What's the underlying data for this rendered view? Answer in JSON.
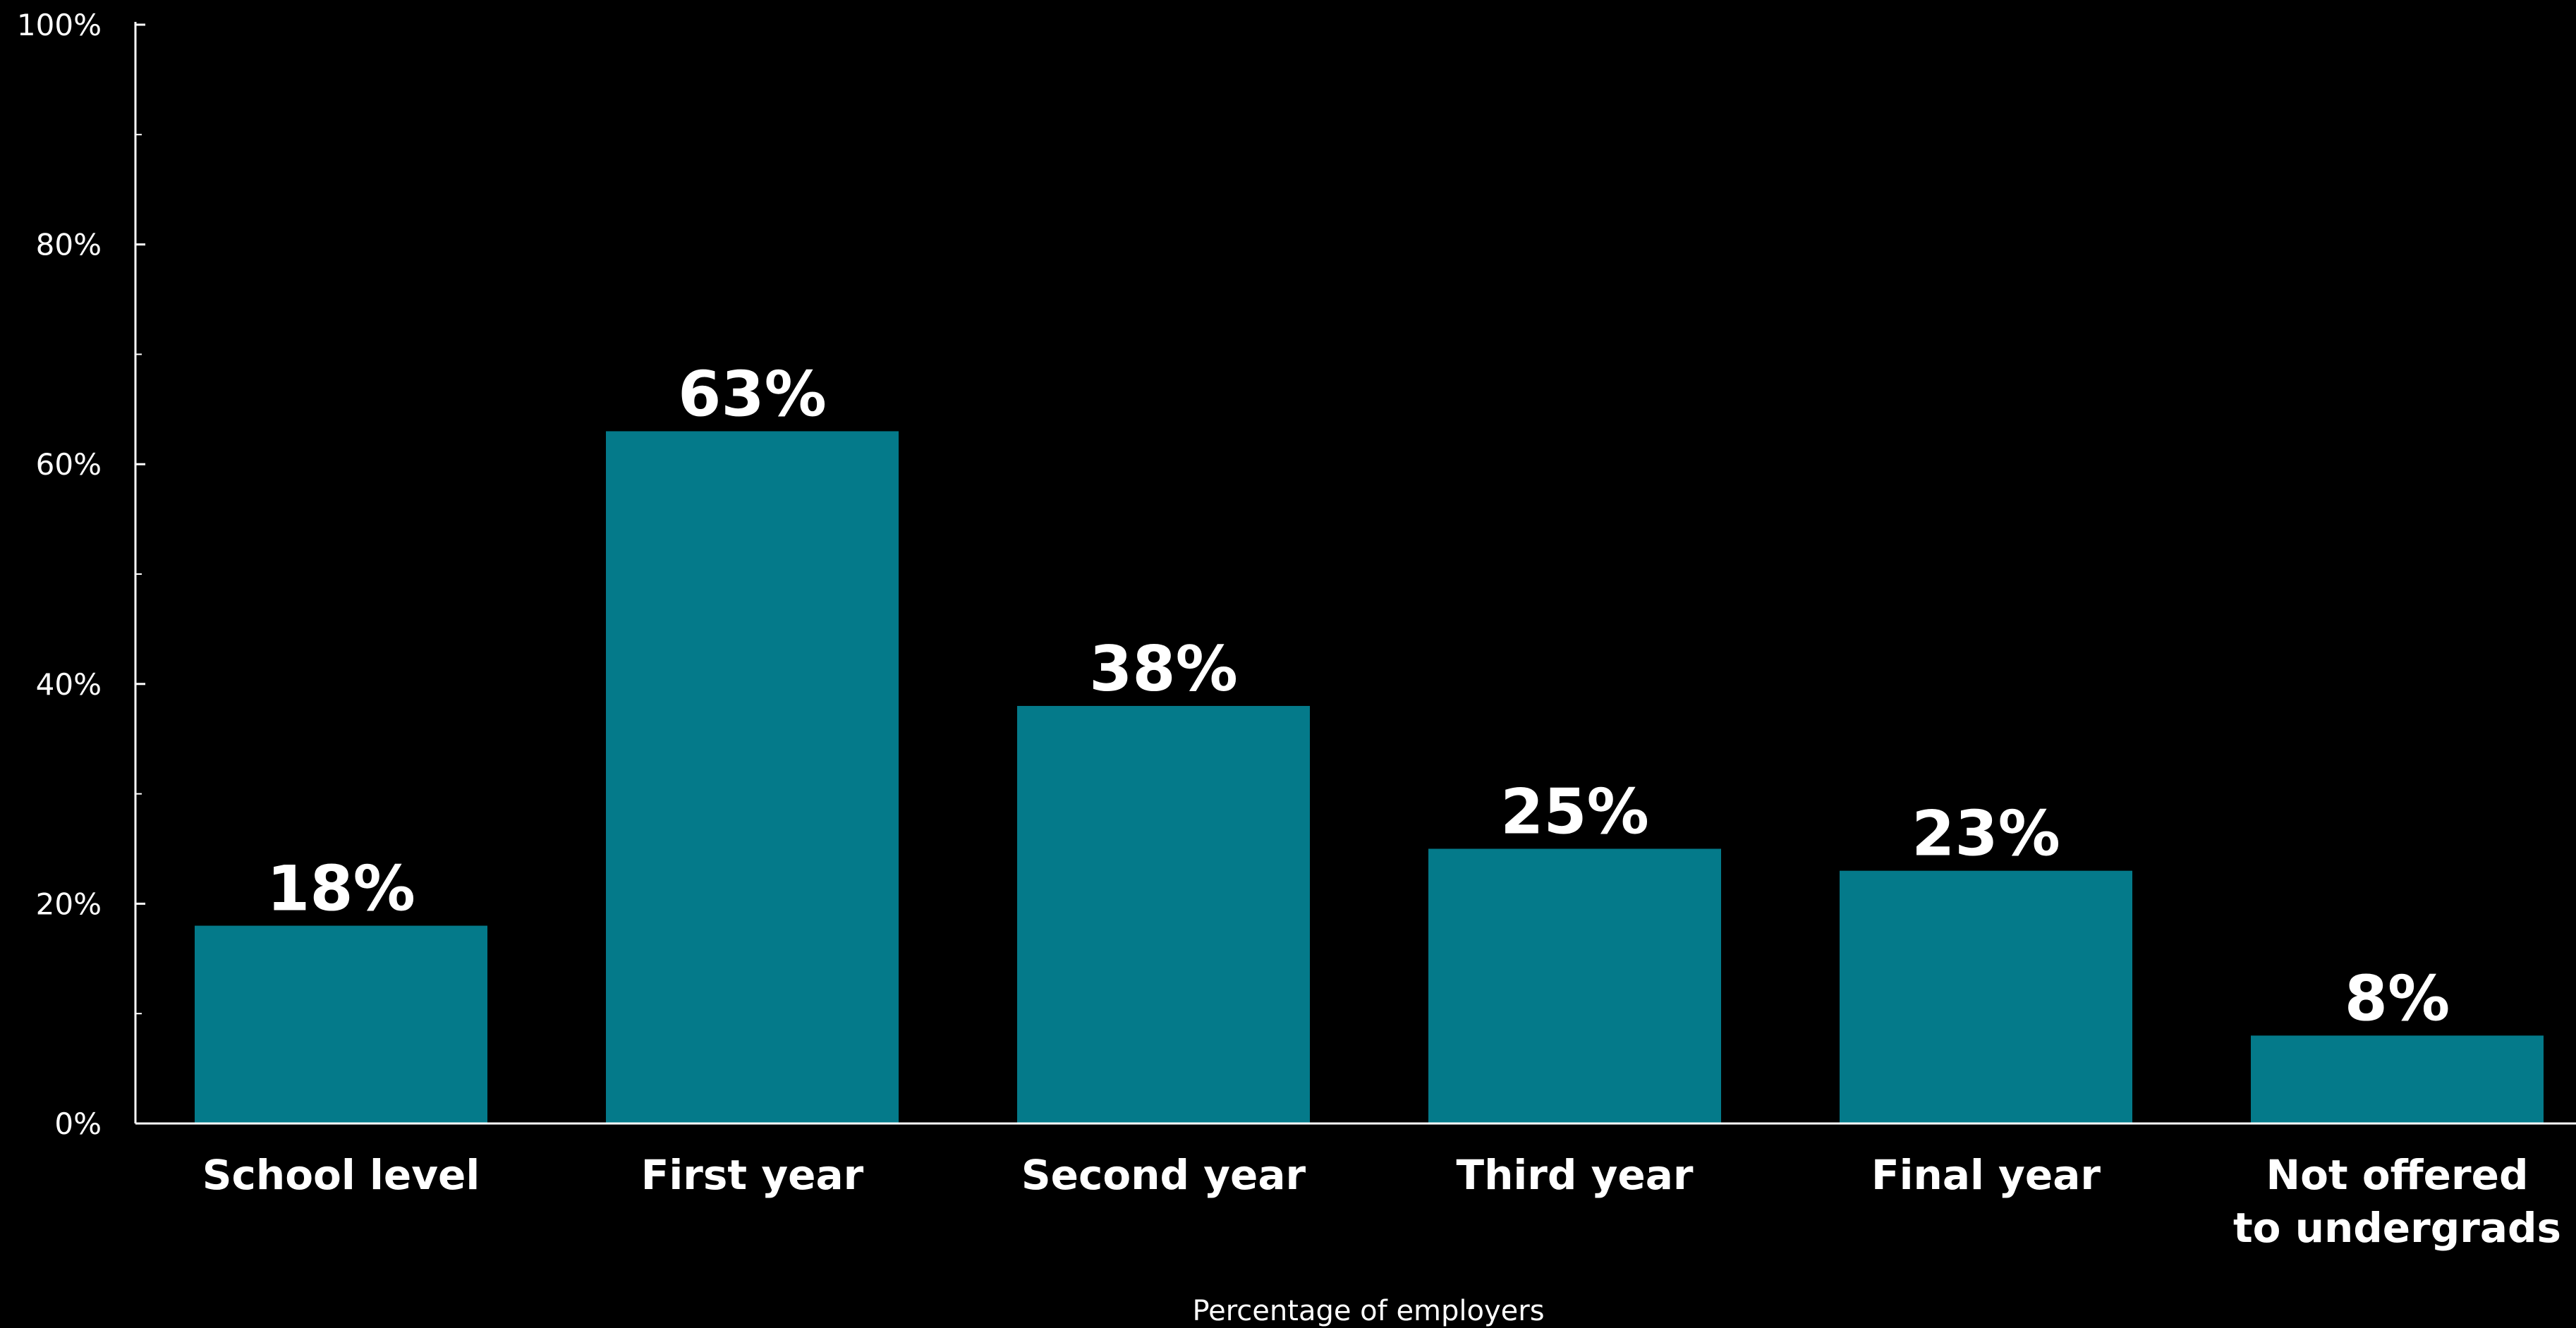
{
  "chart_data": {
    "type": "bar",
    "categories": [
      [
        "School level"
      ],
      [
        "First year"
      ],
      [
        "Second year"
      ],
      [
        "Third year"
      ],
      [
        "Final year"
      ],
      [
        "Not offered",
        "to undergrads"
      ]
    ],
    "values": [
      18,
      63,
      38,
      25,
      23,
      8
    ],
    "value_labels": [
      "18%",
      "63%",
      "38%",
      "25%",
      "23%",
      "8%"
    ],
    "title": "",
    "xlabel": "Percentage of employers",
    "ylabel": "",
    "ylim": [
      0,
      100
    ],
    "yticks": [
      {
        "value": 0,
        "label": "0%"
      },
      {
        "value": 20,
        "label": "20%"
      },
      {
        "value": 40,
        "label": "40%"
      },
      {
        "value": 60,
        "label": "60%"
      },
      {
        "value": 80,
        "label": "80%"
      },
      {
        "value": 100,
        "label": "100%"
      }
    ],
    "minor_ytick_step": 10,
    "grid": false,
    "colors": {
      "background": "#000000",
      "bar": "#047a8a",
      "axis": "#ffffff",
      "text": "#ffffff"
    }
  }
}
